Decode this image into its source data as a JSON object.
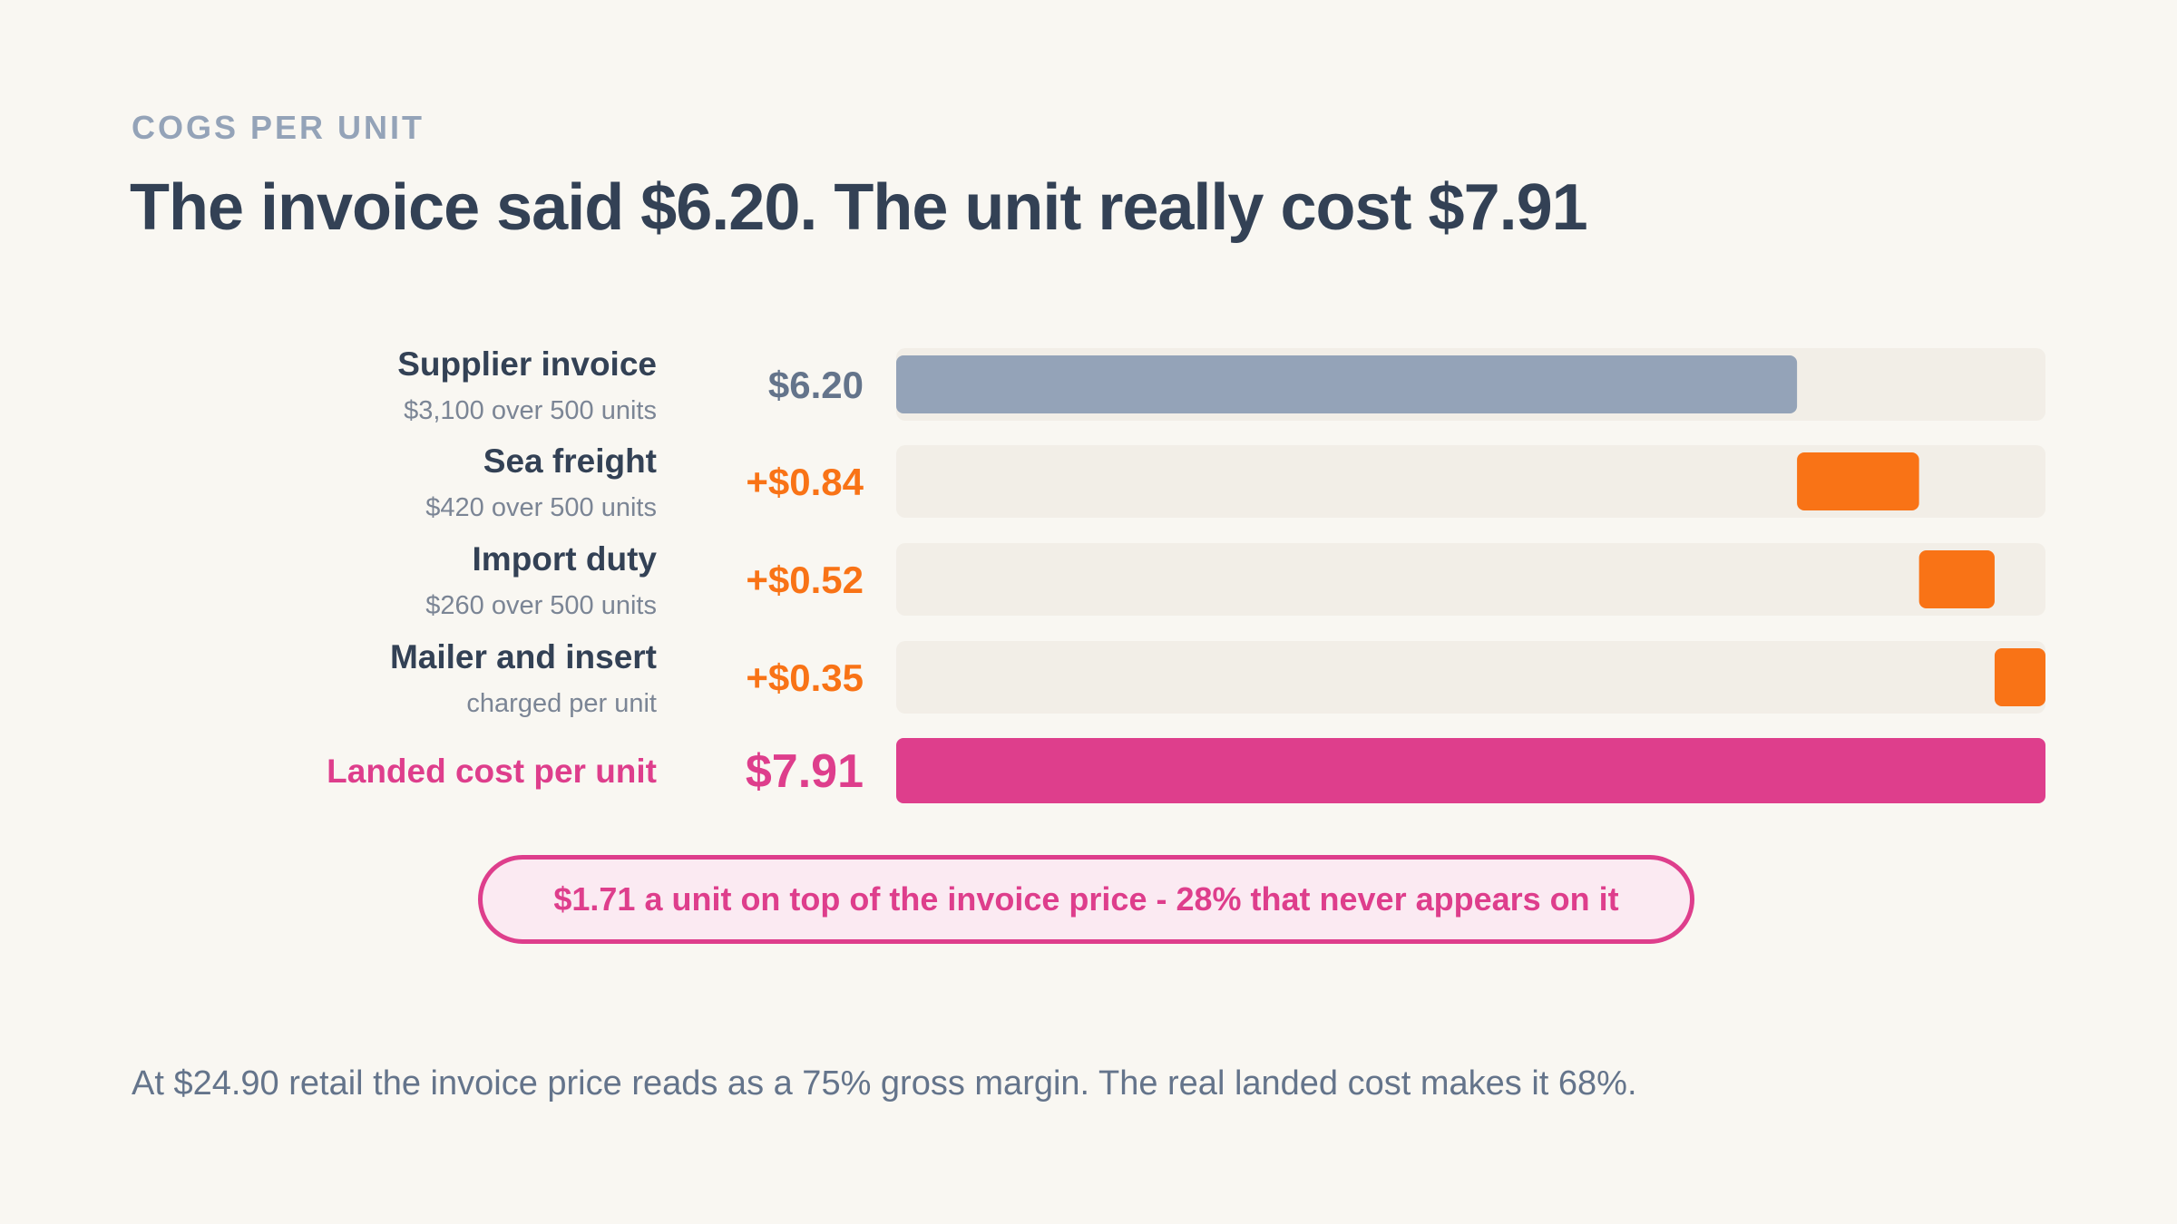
{
  "eyebrow": "COGS PER UNIT",
  "title": "The invoice said $6.20. The unit really cost $7.91",
  "chart_data": {
    "type": "bar",
    "subtype": "waterfall",
    "orientation": "horizontal",
    "xlim": [
      0,
      7.91
    ],
    "grid": false,
    "legend": "none",
    "rows": [
      {
        "label": "Supplier invoice",
        "sublabel": "$3,100 over 500 units",
        "value_label": "$6.20",
        "value": 6.2,
        "start": 0,
        "kind": "base"
      },
      {
        "label": "Sea freight",
        "sublabel": "$420 over 500 units",
        "value_label": "+$0.84",
        "value": 0.84,
        "start": 6.2,
        "kind": "add"
      },
      {
        "label": "Import duty",
        "sublabel": "$260 over 500 units",
        "value_label": "+$0.52",
        "value": 0.52,
        "start": 7.04,
        "kind": "add"
      },
      {
        "label": "Mailer and insert",
        "sublabel": "charged per unit",
        "value_label": "+$0.35",
        "value": 0.35,
        "start": 7.56,
        "kind": "add"
      },
      {
        "label": "Landed cost per unit",
        "sublabel": "",
        "value_label": "$7.91",
        "value": 7.91,
        "start": 0,
        "kind": "total"
      }
    ],
    "colors": {
      "base": "#94a3b8",
      "add": "#f97316",
      "total": "#de3e8c",
      "track": "#f2eee7",
      "label": "#334155",
      "sublabel": "#7b8595"
    }
  },
  "callout": "$1.71 a unit on top of the invoice price - 28% that never appears on it",
  "footnote": "At $24.90 retail the invoice price reads as a 75% gross margin. The real landed cost makes it 68%."
}
